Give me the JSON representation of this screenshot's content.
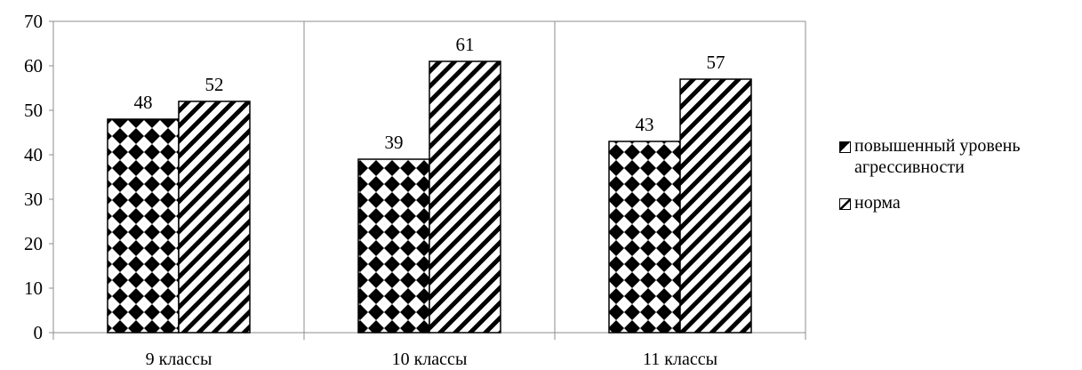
{
  "chart_data": {
    "type": "bar",
    "categories": [
      "9 классы",
      "10 классы",
      "11 классы"
    ],
    "series": [
      {
        "name": "повышенный уровень агрессивности",
        "values": [
          48,
          39,
          43
        ],
        "pattern": "diamond"
      },
      {
        "name": "норма",
        "values": [
          52,
          61,
          57
        ],
        "pattern": "diagonal"
      }
    ],
    "ylim": [
      0,
      70
    ],
    "yticks": [
      0,
      10,
      20,
      30,
      40,
      50,
      60,
      70
    ],
    "title": "",
    "xlabel": "",
    "ylabel": "",
    "grid": "vertical category separators",
    "legend_position": "right",
    "data_labels": true,
    "colors": {
      "bar_fill": "#ffffff",
      "pattern": "#000000",
      "axis": "#8c8c8c"
    }
  }
}
